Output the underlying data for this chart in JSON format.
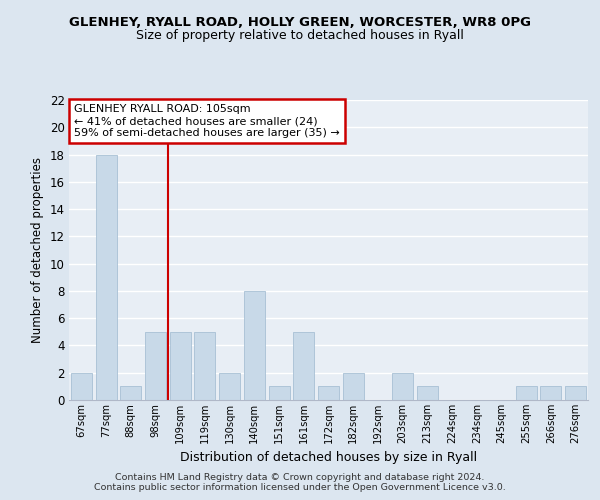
{
  "title1": "GLENHEY, RYALL ROAD, HOLLY GREEN, WORCESTER, WR8 0PG",
  "title2": "Size of property relative to detached houses in Ryall",
  "xlabel": "Distribution of detached houses by size in Ryall",
  "ylabel": "Number of detached properties",
  "categories": [
    "67sqm",
    "77sqm",
    "88sqm",
    "98sqm",
    "109sqm",
    "119sqm",
    "130sqm",
    "140sqm",
    "151sqm",
    "161sqm",
    "172sqm",
    "182sqm",
    "192sqm",
    "203sqm",
    "213sqm",
    "224sqm",
    "234sqm",
    "245sqm",
    "255sqm",
    "266sqm",
    "276sqm"
  ],
  "values": [
    2,
    18,
    1,
    5,
    5,
    5,
    2,
    8,
    1,
    5,
    1,
    2,
    0,
    2,
    1,
    0,
    0,
    0,
    1,
    1,
    1
  ],
  "bar_color": "#c8d9e8",
  "bar_edge_color": "#a8c0d4",
  "vline_x": 3.5,
  "vline_color": "#cc0000",
  "annotation_text": "GLENHEY RYALL ROAD: 105sqm\n← 41% of detached houses are smaller (24)\n59% of semi-detached houses are larger (35) →",
  "annotation_box_facecolor": "#ffffff",
  "annotation_box_edgecolor": "#cc0000",
  "ylim": [
    0,
    22
  ],
  "yticks": [
    0,
    2,
    4,
    6,
    8,
    10,
    12,
    14,
    16,
    18,
    20,
    22
  ],
  "footer": "Contains HM Land Registry data © Crown copyright and database right 2024.\nContains public sector information licensed under the Open Government Licence v3.0.",
  "fig_facecolor": "#dce6f0",
  "plot_facecolor": "#e8eef5",
  "grid_color": "#ffffff",
  "spine_color": "#b0b8c8"
}
